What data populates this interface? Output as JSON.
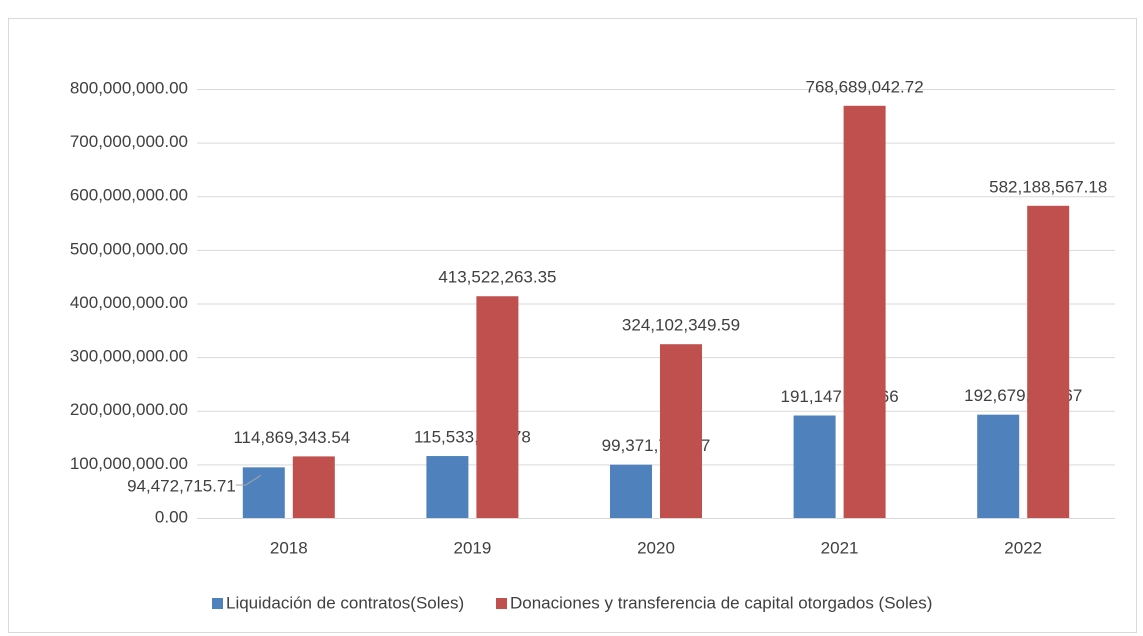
{
  "chart_data": {
    "type": "bar",
    "categories": [
      "2018",
      "2019",
      "2020",
      "2021",
      "2022"
    ],
    "series": [
      {
        "name": "Liquidación de contratos(Soles)",
        "color": "#4f81bd",
        "values": [
          94472715.71,
          115533933.78,
          99371729.07,
          191147848.66,
          192679534.67
        ],
        "value_labels": [
          "94,472,715.71",
          "115,533,933.78",
          "99,371,729.07",
          "191,147,848.66",
          "192,679,534.67"
        ]
      },
      {
        "name": "Donaciones y transferencia de capital otorgados (Soles)",
        "color": "#c0504d",
        "values": [
          114869343.54,
          413522263.35,
          324102349.59,
          768689042.72,
          582188567.18
        ],
        "value_labels": [
          "114,869,343.54",
          "413,522,263.35",
          "324,102,349.59",
          "768,689,042.72",
          "582,188,567.18"
        ]
      }
    ],
    "ylim": [
      0,
      800000000
    ],
    "yticks": [
      {
        "value": 0,
        "label": "0.00"
      },
      {
        "value": 100000000,
        "label": "100,000,000.00"
      },
      {
        "value": 200000000,
        "label": "200,000,000.00"
      },
      {
        "value": 300000000,
        "label": "300,000,000.00"
      },
      {
        "value": 400000000,
        "label": "400,000,000.00"
      },
      {
        "value": 500000000,
        "label": "500,000,000.00"
      },
      {
        "value": 600000000,
        "label": "600,000,000.00"
      },
      {
        "value": 700000000,
        "label": "700,000,000.00"
      },
      {
        "value": 800000000,
        "label": "800,000,000.00"
      }
    ],
    "grid": true,
    "legend": "bottom"
  }
}
